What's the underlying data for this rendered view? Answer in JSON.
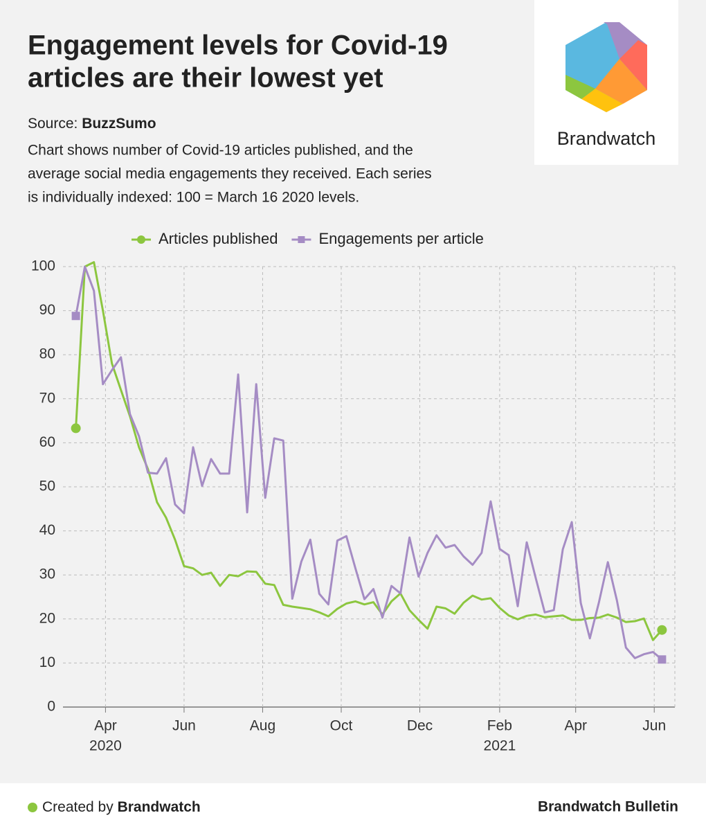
{
  "header": {
    "title": [
      "Engagement levels for Covid-19",
      "articles are their lowest yet"
    ],
    "source_label": "Source:",
    "source": "BuzzSumo",
    "description": [
      "Chart shows number of Covid-19 articles published, and the",
      "average social media engagements they received. Each series",
      "is individually indexed: 100 = March 16 2020 levels."
    ]
  },
  "logo": {
    "text": "Brandwatch"
  },
  "footer": {
    "created_label": "Created by",
    "created_by": "Brandwatch",
    "right": "Brandwatch Bulletin"
  },
  "chart_data": {
    "type": "line",
    "x": [
      "2020-03-09",
      "2020-03-16",
      "2020-03-23",
      "2020-03-30",
      "2020-04-06",
      "2020-04-13",
      "2020-04-20",
      "2020-04-27",
      "2020-05-04",
      "2020-05-11",
      "2020-05-18",
      "2020-05-25",
      "2020-06-01",
      "2020-06-08",
      "2020-06-15",
      "2020-06-22",
      "2020-06-29",
      "2020-07-06",
      "2020-07-13",
      "2020-07-20",
      "2020-07-27",
      "2020-08-03",
      "2020-08-10",
      "2020-08-17",
      "2020-08-24",
      "2020-08-31",
      "2020-09-07",
      "2020-09-14",
      "2020-09-21",
      "2020-09-28",
      "2020-10-05",
      "2020-10-12",
      "2020-10-19",
      "2020-10-26",
      "2020-11-02",
      "2020-11-09",
      "2020-11-16",
      "2020-11-23",
      "2020-11-30",
      "2020-12-07",
      "2020-12-14",
      "2020-12-21",
      "2020-12-28",
      "2021-01-04",
      "2021-01-11",
      "2021-01-18",
      "2021-01-25",
      "2021-02-01",
      "2021-02-08",
      "2021-02-15",
      "2021-02-22",
      "2021-03-01",
      "2021-03-08",
      "2021-03-15",
      "2021-03-22",
      "2021-03-29",
      "2021-04-05",
      "2021-04-12",
      "2021-04-19",
      "2021-04-26",
      "2021-05-03",
      "2021-05-10",
      "2021-05-17",
      "2021-05-24",
      "2021-05-31",
      "2021-06-07"
    ],
    "series": [
      {
        "name": "Articles published",
        "color": "#8cc63f",
        "marker": "circle",
        "values": [
          63.3,
          100,
          101,
          90,
          78,
          72,
          66,
          59,
          54,
          46.5,
          43,
          38,
          32,
          31.5,
          30,
          30.5,
          27.5,
          30,
          29.7,
          30.8,
          30.7,
          28,
          27.7,
          23.2,
          22.8,
          22.5,
          22.2,
          21.5,
          20.6,
          22.3,
          23.5,
          24,
          23.3,
          23.8,
          21,
          24,
          25.8,
          22,
          19.8,
          17.8,
          22.8,
          22.4,
          21.2,
          23.7,
          25.3,
          24.4,
          24.7,
          22.5,
          20.8,
          19.9,
          20.7,
          21,
          20.4,
          20.6,
          20.8,
          19.8,
          19.8,
          20.2,
          20.3,
          21,
          20.3,
          19.3,
          19.5,
          20.1,
          15.2,
          17.5
        ]
      },
      {
        "name": "Engagements per article",
        "color": "#a58cc4",
        "marker": "square",
        "values": [
          88.8,
          100,
          94.5,
          73.3,
          76.5,
          79.4,
          66.5,
          61.5,
          53.2,
          53,
          56.5,
          46,
          44,
          59,
          50.2,
          56.3,
          53,
          53,
          75.5,
          44.2,
          73.3,
          47.5,
          61,
          60.5,
          24.6,
          33,
          38,
          25.7,
          23.3,
          37.8,
          38.8,
          31.5,
          24.5,
          26.8,
          20.3,
          27.5,
          25.8,
          38.5,
          29.6,
          35,
          39,
          36.2,
          36.8,
          34.2,
          32.3,
          35,
          46.7,
          35.9,
          34.5,
          22.9,
          37.4,
          29.3,
          21.5,
          22,
          35.8,
          42,
          23.6,
          15.6,
          23.7,
          32.9,
          24.2,
          13.5,
          11.1,
          12,
          12.5,
          10.8
        ]
      }
    ],
    "xlim": [
      "2020-02-28",
      "2021-06-17"
    ],
    "xticks": [
      {
        "value": "2020-04-01",
        "label": "Apr"
      },
      {
        "value": "2020-06-01",
        "label": "Jun"
      },
      {
        "value": "2020-08-01",
        "label": "Aug"
      },
      {
        "value": "2020-10-01",
        "label": "Oct"
      },
      {
        "value": "2020-12-01",
        "label": "Dec"
      },
      {
        "value": "2021-02-01",
        "label": "Feb"
      },
      {
        "value": "2021-04-01",
        "label": "Apr"
      },
      {
        "value": "2021-06-01",
        "label": "Jun"
      }
    ],
    "x_year_labels": [
      {
        "value": "2020-04-01",
        "label": "2020"
      },
      {
        "value": "2021-02-01",
        "label": "2021"
      }
    ],
    "ylim": [
      0,
      100
    ],
    "yticks": [
      0,
      10,
      20,
      30,
      40,
      50,
      60,
      70,
      80,
      90,
      100
    ],
    "grid": true,
    "legend": "top"
  }
}
